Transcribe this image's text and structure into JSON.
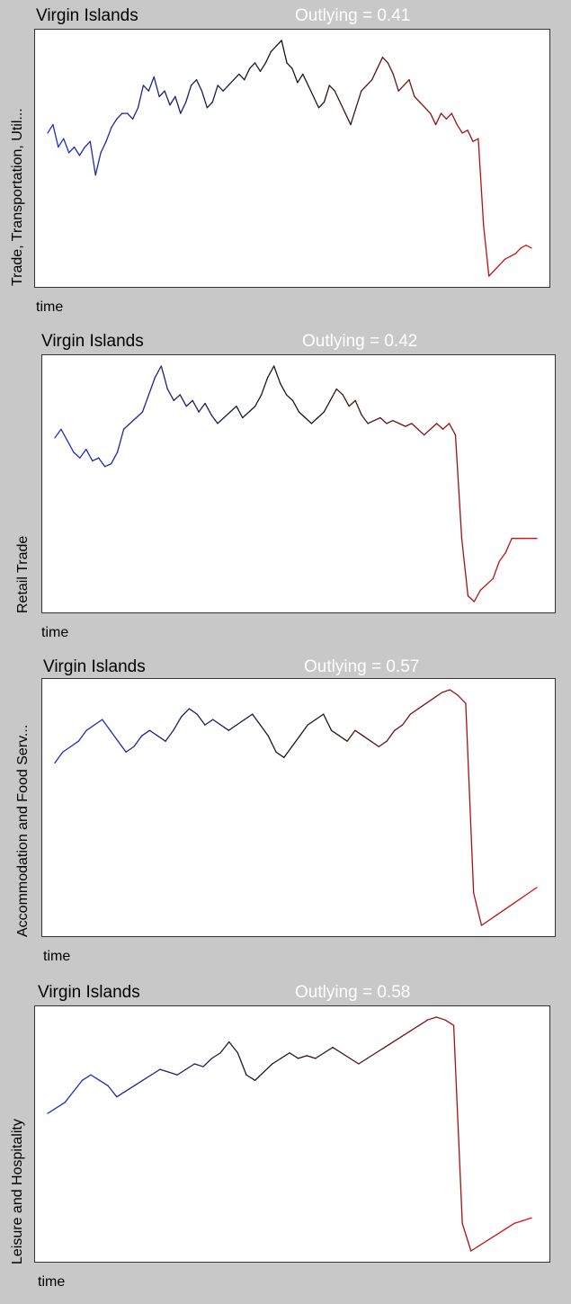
{
  "chart_data": [
    {
      "type": "line",
      "title": "Virgin Islands",
      "annotation": "Outlying = 0.41",
      "ylabel": "Trade, Transportation, Util...",
      "xlabel": "time",
      "series": [
        {
          "values": [
            55,
            58,
            50,
            53,
            48,
            50,
            47,
            50,
            52,
            40,
            48,
            52,
            57,
            60,
            62,
            62,
            60,
            64,
            72,
            70,
            75,
            68,
            70,
            65,
            68,
            62,
            66,
            72,
            74,
            70,
            64,
            66,
            72,
            70,
            72,
            74,
            76,
            74,
            78,
            80,
            77,
            80,
            84,
            86,
            88,
            80,
            78,
            73,
            76,
            72,
            68,
            64,
            66,
            72,
            70,
            66,
            62,
            58,
            64,
            70,
            72,
            74,
            78,
            82,
            80,
            76,
            70,
            72,
            74,
            68,
            66,
            64,
            62,
            58,
            62,
            60,
            62,
            58,
            55,
            56,
            52,
            53,
            22,
            4,
            6,
            8,
            10,
            11,
            12,
            14,
            15,
            14
          ]
        }
      ]
    },
    {
      "type": "line",
      "title": "Virgin Islands",
      "annotation": "Outlying = 0.42",
      "ylabel": "Retail Trade",
      "xlabel": "time",
      "series": [
        {
          "values": [
            65,
            68,
            64,
            60,
            58,
            61,
            57,
            58,
            55,
            56,
            60,
            68,
            70,
            72,
            74,
            80,
            86,
            90,
            82,
            78,
            80,
            76,
            78,
            74,
            77,
            73,
            70,
            72,
            74,
            76,
            72,
            74,
            76,
            80,
            86,
            90,
            84,
            80,
            78,
            74,
            72,
            70,
            72,
            74,
            78,
            82,
            80,
            76,
            78,
            73,
            70,
            71,
            72,
            70,
            71,
            70,
            69,
            70,
            68,
            66,
            68,
            70,
            68,
            70,
            66,
            30,
            10,
            8,
            12,
            14,
            16,
            22,
            25,
            30,
            30,
            30,
            30,
            30
          ]
        }
      ]
    },
    {
      "type": "line",
      "title": "Virgin Islands",
      "annotation": "Outlying = 0.57",
      "ylabel": "Accommodation and Food Serv...",
      "xlabel": "time",
      "series": [
        {
          "values": [
            68,
            72,
            74,
            76,
            80,
            82,
            84,
            80,
            76,
            72,
            74,
            78,
            80,
            78,
            76,
            80,
            85,
            88,
            86,
            82,
            84,
            82,
            80,
            82,
            84,
            86,
            82,
            78,
            72,
            70,
            74,
            78,
            82,
            84,
            86,
            80,
            78,
            76,
            80,
            78,
            76,
            74,
            76,
            80,
            82,
            86,
            88,
            90,
            92,
            94,
            95,
            93,
            90,
            20,
            8,
            10,
            12,
            14,
            16,
            18,
            20,
            22
          ]
        }
      ]
    },
    {
      "type": "line",
      "title": "Virgin Islands",
      "annotation": "Outlying = 0.58",
      "ylabel": "Leisure and Hospitality",
      "xlabel": "time",
      "series": [
        {
          "values": [
            60,
            62,
            64,
            68,
            72,
            74,
            72,
            70,
            66,
            68,
            70,
            72,
            74,
            76,
            75,
            74,
            76,
            78,
            77,
            80,
            82,
            86,
            82,
            74,
            72,
            75,
            78,
            80,
            82,
            80,
            81,
            80,
            82,
            84,
            82,
            80,
            78,
            80,
            82,
            84,
            86,
            88,
            90,
            92,
            94,
            95,
            94,
            92,
            20,
            10,
            12,
            14,
            16,
            18,
            20,
            21,
            22
          ]
        }
      ]
    }
  ],
  "colors": {
    "start": "#1f2fd6",
    "mid": "#141414",
    "end": "#e01010"
  }
}
